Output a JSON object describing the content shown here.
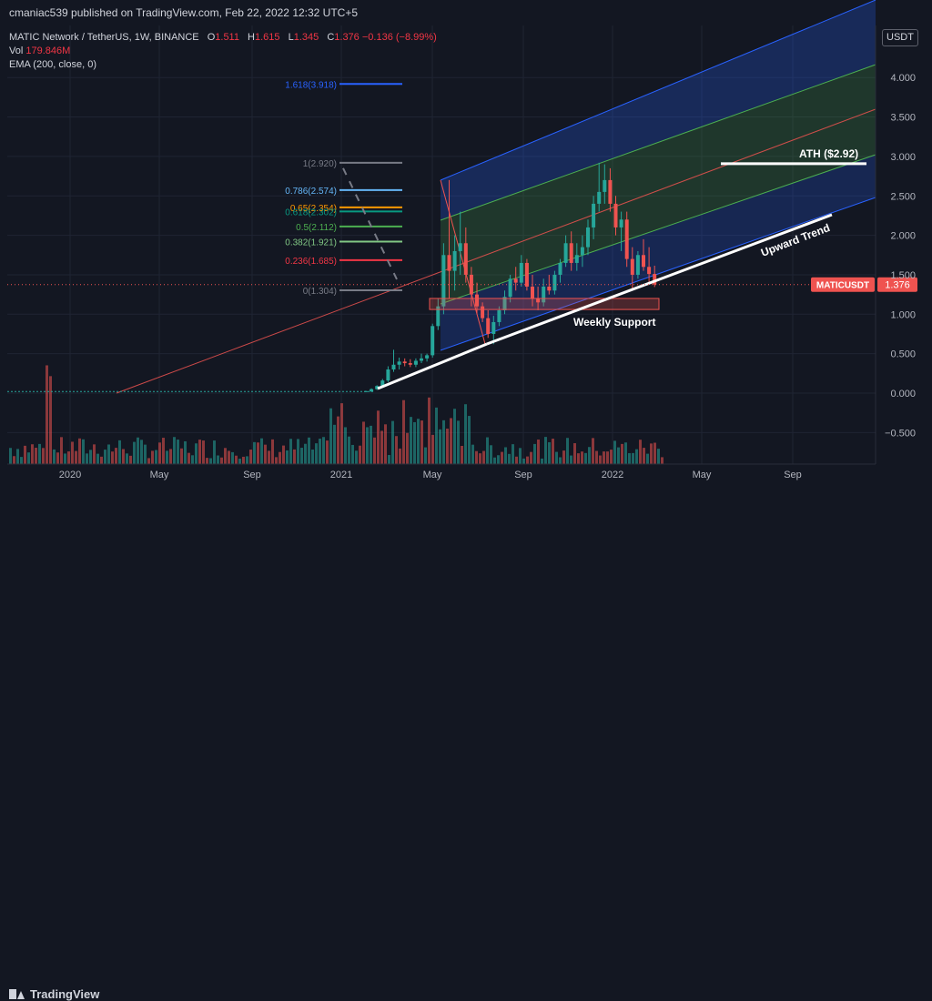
{
  "header": {
    "published": "cmaniac539 published on TradingView.com, Feb 22, 2022 12:32 UTC+5"
  },
  "legend": {
    "symbol": "MATIC Network / TetherUS, 1W, BINANCE",
    "o_label": "O",
    "o": "1.511",
    "h_label": "H",
    "h": "1.615",
    "l_label": "L",
    "l": "1.345",
    "c_label": "C",
    "c": "1.376",
    "change": "−0.136 (−8.99%)",
    "vol_label": "Vol",
    "vol": "179.846M",
    "ema": "EMA (200, close, 0)"
  },
  "currency_button": "USDT",
  "footer": {
    "brand": "TradingView",
    "logo_icon": "tradingview-logo-icon"
  },
  "colors": {
    "background": "#131722",
    "up": "#26a69a",
    "down": "#ef5350",
    "accent": "#2962ff"
  },
  "chart_data": {
    "type": "candlestick",
    "symbol": "MATICUSDT",
    "timeframe": "1W",
    "x_ticks": [
      "2020",
      "May",
      "Sep",
      "2021",
      "May",
      "Sep",
      "2022",
      "May",
      "Sep"
    ],
    "y_ticks": [
      "4.000",
      "3.500",
      "3.000",
      "2.500",
      "2.000",
      "1.500",
      "1.000",
      "0.500",
      "0.000",
      "−0.500"
    ],
    "ylim": [
      -0.85,
      4.95
    ],
    "last_price": 1.376,
    "last_price_label": "MATICUSDT",
    "last_price_value": "1.376",
    "grid": true,
    "fibonacci_levels": [
      {
        "ratio": "1.618",
        "label": "1.618(3.918)",
        "price": 3.918,
        "color": "#2962ff"
      },
      {
        "ratio": "1",
        "label": "1(2.920)",
        "price": 2.92,
        "color": "#787b86"
      },
      {
        "ratio": "0.786",
        "label": "0.786(2.574)",
        "price": 2.574,
        "color": "#64b5f6"
      },
      {
        "ratio": "0.65",
        "label": "0.65(2.354)",
        "price": 2.354,
        "color": "#ff9800"
      },
      {
        "ratio": "0.618",
        "label": "0.618(2.302)",
        "price": 2.302,
        "color": "#089981"
      },
      {
        "ratio": "0.5",
        "label": "0.5(2.112)",
        "price": 2.112,
        "color": "#4caf50"
      },
      {
        "ratio": "0.382",
        "label": "0.382(1.921)",
        "price": 1.921,
        "color": "#81c784"
      },
      {
        "ratio": "0.236",
        "label": "0.236(1.685)",
        "price": 1.685,
        "color": "#f23645"
      },
      {
        "ratio": "0",
        "label": "0(1.304)",
        "price": 1.304,
        "color": "#787b86"
      }
    ],
    "annotations": [
      {
        "text": "ATH ($2.92)",
        "price": 2.92
      },
      {
        "text": "Upward Trend"
      },
      {
        "text": "Weekly Support",
        "price_low": 1.06,
        "price_high": 1.2
      }
    ],
    "candles": [
      {
        "t": "2021-01",
        "o": 0.018,
        "h": 0.03,
        "l": 0.015,
        "c": 0.025
      },
      {
        "t": "2021-02",
        "o": 0.02,
        "h": 0.06,
        "l": 0.02,
        "c": 0.05
      },
      {
        "t": "2021-02",
        "o": 0.05,
        "h": 0.1,
        "l": 0.04,
        "c": 0.09
      },
      {
        "t": "2021-02",
        "o": 0.09,
        "h": 0.18,
        "l": 0.08,
        "c": 0.16
      },
      {
        "t": "2021-03",
        "o": 0.16,
        "h": 0.34,
        "l": 0.14,
        "c": 0.3
      },
      {
        "t": "2021-03",
        "o": 0.3,
        "h": 0.55,
        "l": 0.27,
        "c": 0.36
      },
      {
        "t": "2021-03",
        "o": 0.36,
        "h": 0.45,
        "l": 0.3,
        "c": 0.4
      },
      {
        "t": "2021-03",
        "o": 0.4,
        "h": 0.44,
        "l": 0.34,
        "c": 0.38
      },
      {
        "t": "2021-04",
        "o": 0.38,
        "h": 0.43,
        "l": 0.33,
        "c": 0.36
      },
      {
        "t": "2021-04",
        "o": 0.36,
        "h": 0.44,
        "l": 0.33,
        "c": 0.41
      },
      {
        "t": "2021-04",
        "o": 0.41,
        "h": 0.5,
        "l": 0.38,
        "c": 0.44
      },
      {
        "t": "2021-04",
        "o": 0.44,
        "h": 0.5,
        "l": 0.4,
        "c": 0.48
      },
      {
        "t": "2021-05",
        "o": 0.48,
        "h": 0.88,
        "l": 0.45,
        "c": 0.85
      },
      {
        "t": "2021-05",
        "o": 0.85,
        "h": 1.2,
        "l": 0.8,
        "c": 1.1
      },
      {
        "t": "2021-05",
        "o": 1.1,
        "h": 1.9,
        "l": 1.0,
        "c": 1.75
      },
      {
        "t": "2021-05",
        "o": 1.75,
        "h": 2.7,
        "l": 1.2,
        "c": 1.55
      },
      {
        "t": "2021-05",
        "o": 1.55,
        "h": 2.0,
        "l": 1.3,
        "c": 1.8
      },
      {
        "t": "2021-06",
        "o": 1.8,
        "h": 2.3,
        "l": 1.5,
        "c": 1.9
      },
      {
        "t": "2021-06",
        "o": 1.9,
        "h": 2.1,
        "l": 1.4,
        "c": 1.5
      },
      {
        "t": "2021-06",
        "o": 1.5,
        "h": 1.6,
        "l": 1.1,
        "c": 1.25
      },
      {
        "t": "2021-06",
        "o": 1.25,
        "h": 1.4,
        "l": 1.0,
        "c": 1.1
      },
      {
        "t": "2021-07",
        "o": 1.1,
        "h": 1.15,
        "l": 0.9,
        "c": 0.95
      },
      {
        "t": "2021-07",
        "o": 0.95,
        "h": 1.05,
        "l": 0.7,
        "c": 0.75
      },
      {
        "t": "2021-07",
        "o": 0.75,
        "h": 0.98,
        "l": 0.62,
        "c": 0.9
      },
      {
        "t": "2021-07",
        "o": 0.9,
        "h": 1.1,
        "l": 0.85,
        "c": 1.05
      },
      {
        "t": "2021-08",
        "o": 1.05,
        "h": 1.3,
        "l": 1.0,
        "c": 1.22
      },
      {
        "t": "2021-08",
        "o": 1.22,
        "h": 1.5,
        "l": 1.15,
        "c": 1.45
      },
      {
        "t": "2021-08",
        "o": 1.45,
        "h": 1.6,
        "l": 1.3,
        "c": 1.4
      },
      {
        "t": "2021-08",
        "o": 1.4,
        "h": 1.75,
        "l": 1.35,
        "c": 1.65
      },
      {
        "t": "2021-09",
        "o": 1.65,
        "h": 1.7,
        "l": 1.3,
        "c": 1.35
      },
      {
        "t": "2021-09",
        "o": 1.35,
        "h": 1.5,
        "l": 1.1,
        "c": 1.2
      },
      {
        "t": "2021-09",
        "o": 1.2,
        "h": 1.35,
        "l": 1.05,
        "c": 1.15
      },
      {
        "t": "2021-09",
        "o": 1.15,
        "h": 1.45,
        "l": 1.1,
        "c": 1.35
      },
      {
        "t": "2021-10",
        "o": 1.35,
        "h": 1.5,
        "l": 1.25,
        "c": 1.3
      },
      {
        "t": "2021-10",
        "o": 1.3,
        "h": 1.55,
        "l": 1.25,
        "c": 1.5
      },
      {
        "t": "2021-10",
        "o": 1.5,
        "h": 1.7,
        "l": 1.4,
        "c": 1.65
      },
      {
        "t": "2021-10",
        "o": 1.65,
        "h": 2.0,
        "l": 1.6,
        "c": 1.9
      },
      {
        "t": "2021-11",
        "o": 1.9,
        "h": 2.05,
        "l": 1.55,
        "c": 1.65
      },
      {
        "t": "2021-11",
        "o": 1.65,
        "h": 1.9,
        "l": 1.55,
        "c": 1.75
      },
      {
        "t": "2021-11",
        "o": 1.75,
        "h": 2.0,
        "l": 1.6,
        "c": 1.85
      },
      {
        "t": "2021-11",
        "o": 1.85,
        "h": 2.2,
        "l": 1.75,
        "c": 2.1
      },
      {
        "t": "2021-12",
        "o": 2.1,
        "h": 2.5,
        "l": 1.95,
        "c": 2.4
      },
      {
        "t": "2021-12",
        "o": 2.4,
        "h": 2.92,
        "l": 2.3,
        "c": 2.55
      },
      {
        "t": "2021-12",
        "o": 2.55,
        "h": 2.9,
        "l": 2.4,
        "c": 2.7
      },
      {
        "t": "2021-12",
        "o": 2.7,
        "h": 2.85,
        "l": 2.3,
        "c": 2.4
      },
      {
        "t": "2022-01",
        "o": 2.4,
        "h": 2.5,
        "l": 2.0,
        "c": 2.1
      },
      {
        "t": "2022-01",
        "o": 2.1,
        "h": 2.3,
        "l": 1.8,
        "c": 2.2
      },
      {
        "t": "2022-01",
        "o": 2.2,
        "h": 2.3,
        "l": 1.6,
        "c": 1.7
      },
      {
        "t": "2022-01",
        "o": 1.7,
        "h": 1.85,
        "l": 1.3,
        "c": 1.5
      },
      {
        "t": "2022-02",
        "o": 1.5,
        "h": 1.8,
        "l": 1.45,
        "c": 1.75
      },
      {
        "t": "2022-02",
        "o": 1.75,
        "h": 1.95,
        "l": 1.55,
        "c": 1.6
      },
      {
        "t": "2022-02",
        "o": 1.6,
        "h": 1.85,
        "l": 1.4,
        "c": 1.51
      },
      {
        "t": "2022-02",
        "o": 1.511,
        "h": 1.615,
        "l": 1.345,
        "c": 1.376
      }
    ]
  }
}
